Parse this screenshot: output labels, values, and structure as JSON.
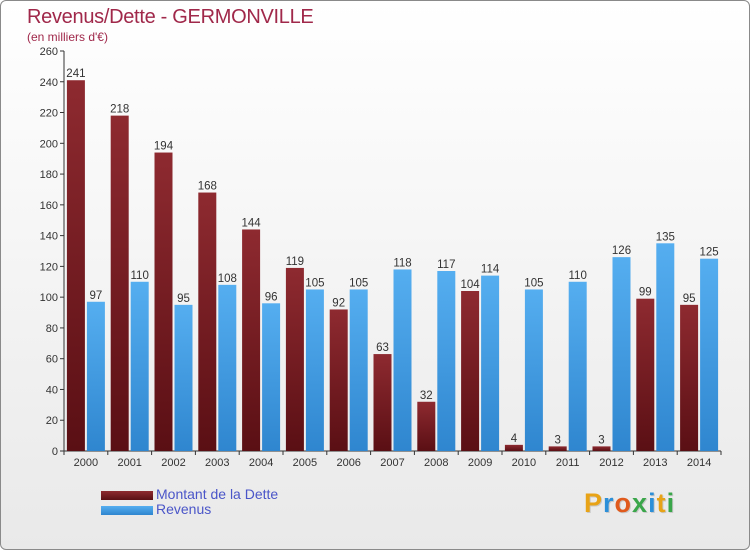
{
  "header": {
    "title": "Revenus/Dette - GERMONVILLE",
    "subtitle": "(en milliers d'€)"
  },
  "colors": {
    "dette": "#7b1c22",
    "revenus": "#4aa3e6",
    "title": "#a0284a"
  },
  "legend": {
    "items": [
      {
        "label": "Montant de la Dette",
        "color": "#7b1c22"
      },
      {
        "label": "Revenus",
        "color": "#4aa3e6"
      }
    ]
  },
  "logo": {
    "text": "Proxiti"
  },
  "chart_data": {
    "type": "bar",
    "title": "Revenus/Dette - GERMONVILLE",
    "subtitle": "(en milliers d'€)",
    "xlabel": "",
    "ylabel": "",
    "categories": [
      "2000",
      "2001",
      "2002",
      "2003",
      "2004",
      "2005",
      "2006",
      "2007",
      "2008",
      "2009",
      "2010",
      "2011",
      "2012",
      "2013",
      "2014"
    ],
    "ylim": [
      0,
      260
    ],
    "yticks": [
      0,
      20,
      40,
      60,
      80,
      100,
      120,
      140,
      160,
      180,
      200,
      220,
      240,
      260
    ],
    "grid": false,
    "legend_position": "bottom-left",
    "series": [
      {
        "name": "Montant de la Dette",
        "color": "#7b1c22",
        "values": [
          241,
          218,
          194,
          168,
          144,
          119,
          92,
          63,
          32,
          104,
          4,
          3,
          3,
          99,
          95
        ]
      },
      {
        "name": "Revenus",
        "color": "#4aa3e6",
        "values": [
          97,
          110,
          95,
          108,
          96,
          105,
          105,
          118,
          117,
          114,
          105,
          110,
          126,
          135,
          125
        ]
      }
    ]
  }
}
